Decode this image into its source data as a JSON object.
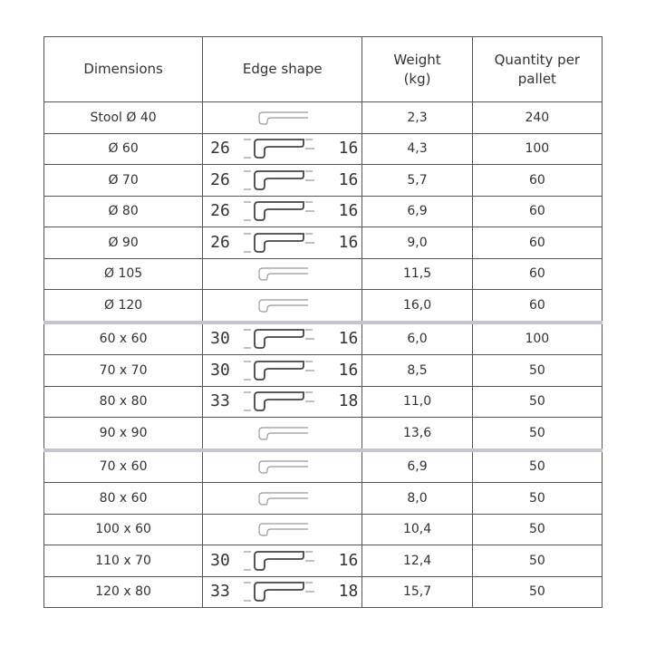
{
  "headers": [
    "Dimensions",
    "Edge shape",
    "Weight\n(kg)",
    "Quantity per\npallet"
  ],
  "rows": [
    {
      "dim": "Stool Ø 40",
      "edge": {
        "type": "simple"
      },
      "weight": "2,3",
      "qty": "240",
      "group_start": false
    },
    {
      "dim": "Ø 60",
      "edge": {
        "type": "profile",
        "left": "26",
        "right": "16"
      },
      "weight": "4,3",
      "qty": "100",
      "group_start": false
    },
    {
      "dim": "Ø 70",
      "edge": {
        "type": "profile",
        "left": "26",
        "right": "16"
      },
      "weight": "5,7",
      "qty": "60",
      "group_start": false
    },
    {
      "dim": "Ø 80",
      "edge": {
        "type": "profile",
        "left": "26",
        "right": "16"
      },
      "weight": "6,9",
      "qty": "60",
      "group_start": false
    },
    {
      "dim": "Ø 90",
      "edge": {
        "type": "profile",
        "left": "26",
        "right": "16"
      },
      "weight": "9,0",
      "qty": "60",
      "group_start": false
    },
    {
      "dim": "Ø 105",
      "edge": {
        "type": "simple"
      },
      "weight": "11,5",
      "qty": "60",
      "group_start": false
    },
    {
      "dim": "Ø 120",
      "edge": {
        "type": "simple"
      },
      "weight": "16,0",
      "qty": "60",
      "group_start": false
    },
    {
      "dim": "60 x 60",
      "edge": {
        "type": "profile",
        "left": "30",
        "right": "16"
      },
      "weight": "6,0",
      "qty": "100",
      "group_start": true
    },
    {
      "dim": "70 x 70",
      "edge": {
        "type": "profile",
        "left": "30",
        "right": "16"
      },
      "weight": "8,5",
      "qty": "50",
      "group_start": false
    },
    {
      "dim": "80 x 80",
      "edge": {
        "type": "profile",
        "left": "33",
        "right": "18"
      },
      "weight": "11,0",
      "qty": "50",
      "group_start": false
    },
    {
      "dim": "90 x 90",
      "edge": {
        "type": "simple"
      },
      "weight": "13,6",
      "qty": "50",
      "group_start": false
    },
    {
      "dim": "70 x 60",
      "edge": {
        "type": "simple"
      },
      "weight": "6,9",
      "qty": "50",
      "group_start": true
    },
    {
      "dim": "80 x 60",
      "edge": {
        "type": "simple"
      },
      "weight": "8,0",
      "qty": "50",
      "group_start": false
    },
    {
      "dim": "100 x 60",
      "edge": {
        "type": "simple"
      },
      "weight": "10,4",
      "qty": "50",
      "group_start": false
    },
    {
      "dim": "110 x 70",
      "edge": {
        "type": "profile",
        "left": "30",
        "right": "16"
      },
      "weight": "12,4",
      "qty": "50",
      "group_start": false
    },
    {
      "dim": "120 x 80",
      "edge": {
        "type": "profile",
        "left": "33",
        "right": "18"
      },
      "weight": "15,7",
      "qty": "50",
      "group_start": false
    }
  ],
  "colors": {
    "group_divider": "#c9c3d3",
    "grid": "#555555"
  }
}
